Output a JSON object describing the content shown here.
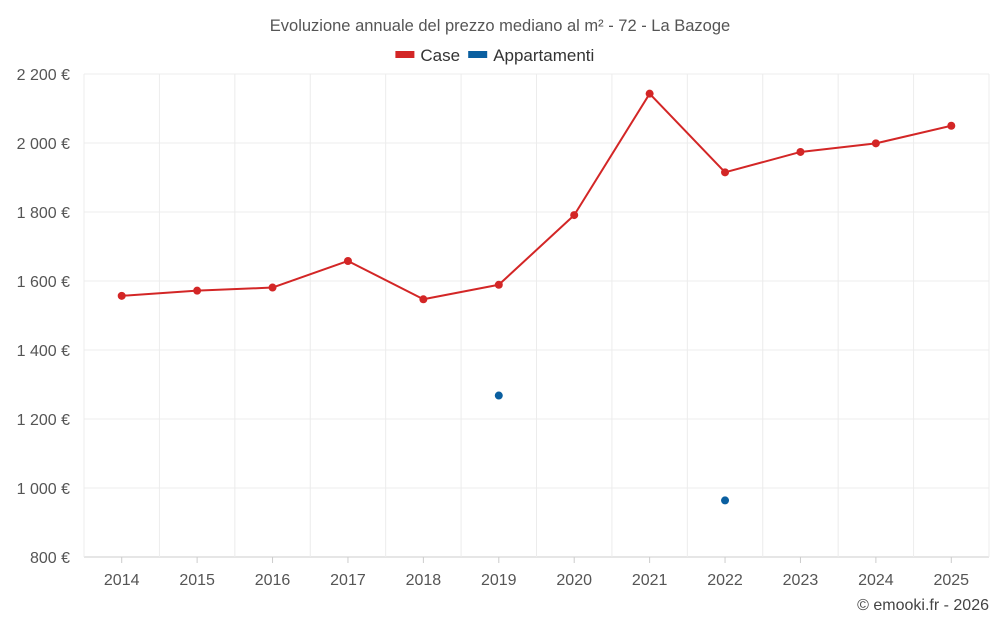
{
  "chart_data": {
    "type": "line",
    "title": "Evoluzione annuale del prezzo mediano al m² - 72 - La Bazoge",
    "categories": [
      "2014",
      "2015",
      "2016",
      "2017",
      "2018",
      "2019",
      "2020",
      "2021",
      "2022",
      "2023",
      "2024",
      "2025"
    ],
    "series": [
      {
        "name": "Case",
        "color": "#d32626",
        "values": [
          1557,
          1572,
          1581,
          1658,
          1547,
          1589,
          1791,
          2143,
          1915,
          1974,
          1999,
          2050
        ]
      },
      {
        "name": "Appartamenti",
        "color": "#0a5fa0",
        "values": [
          null,
          null,
          null,
          null,
          null,
          1268,
          null,
          null,
          964,
          null,
          null,
          null
        ]
      }
    ],
    "ylim": [
      800,
      2200
    ],
    "yticks": [
      800,
      1000,
      1200,
      1400,
      1600,
      1800,
      2000,
      2200
    ],
    "ytick_labels": [
      "800 €",
      "1 000 €",
      "1 200 €",
      "1 400 €",
      "1 600 €",
      "1 800 €",
      "2 000 €",
      "2 200 €"
    ],
    "xlabel": "",
    "ylabel": "",
    "grid": true,
    "legend_position": "top-center"
  },
  "footer": {
    "credit": "© emooki.fr - 2026"
  }
}
